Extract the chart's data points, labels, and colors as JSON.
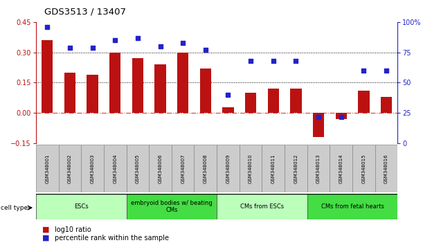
{
  "title": "GDS3513 / 13407",
  "samples": [
    "GSM348001",
    "GSM348002",
    "GSM348003",
    "GSM348004",
    "GSM348005",
    "GSM348006",
    "GSM348007",
    "GSM348008",
    "GSM348009",
    "GSM348010",
    "GSM348011",
    "GSM348012",
    "GSM348013",
    "GSM348014",
    "GSM348015",
    "GSM348016"
  ],
  "log10_ratio": [
    0.36,
    0.2,
    0.19,
    0.3,
    0.27,
    0.24,
    0.3,
    0.22,
    0.03,
    0.1,
    0.12,
    0.12,
    -0.12,
    -0.03,
    0.11,
    0.08
  ],
  "percentile_rank": [
    96,
    79,
    79,
    85,
    87,
    80,
    83,
    77,
    40,
    68,
    68,
    68,
    22,
    22,
    60,
    60
  ],
  "ylim_left": [
    -0.15,
    0.45
  ],
  "ylim_right": [
    0,
    100
  ],
  "yticks_left": [
    -0.15,
    0.0,
    0.15,
    0.3,
    0.45
  ],
  "yticks_right": [
    0,
    25,
    50,
    75,
    100
  ],
  "bar_color": "#BB1111",
  "dot_color": "#2222CC",
  "zero_line_color": "#CC4444",
  "cell_types": [
    {
      "label": "ESCs",
      "start": 0,
      "end": 4,
      "color": "#BBFFBB"
    },
    {
      "label": "embryoid bodies w/ beating\nCMs",
      "start": 4,
      "end": 8,
      "color": "#44DD44"
    },
    {
      "label": "CMs from ESCs",
      "start": 8,
      "end": 12,
      "color": "#BBFFBB"
    },
    {
      "label": "CMs from fetal hearts",
      "start": 12,
      "end": 16,
      "color": "#44DD44"
    }
  ],
  "legend_items": [
    {
      "label": "log10 ratio",
      "color": "#BB1111"
    },
    {
      "label": "percentile rank within the sample",
      "color": "#2222CC"
    }
  ],
  "bar_width": 0.5
}
